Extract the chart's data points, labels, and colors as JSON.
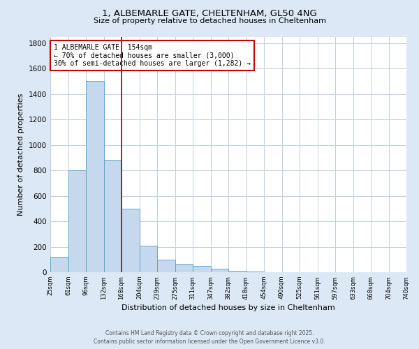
{
  "title_line1": "1, ALBEMARLE GATE, CHELTENHAM, GL50 4NG",
  "title_line2": "Size of property relative to detached houses in Cheltenham",
  "xlabel": "Distribution of detached houses by size in Cheltenham",
  "ylabel": "Number of detached properties",
  "bar_values": [
    120,
    800,
    1500,
    880,
    500,
    210,
    100,
    65,
    50,
    30,
    10,
    5,
    2,
    1,
    1,
    1,
    1,
    1,
    1,
    1
  ],
  "bin_labels": [
    "25sqm",
    "61sqm",
    "96sqm",
    "132sqm",
    "168sqm",
    "204sqm",
    "239sqm",
    "275sqm",
    "311sqm",
    "347sqm",
    "382sqm",
    "418sqm",
    "454sqm",
    "490sqm",
    "525sqm",
    "561sqm",
    "597sqm",
    "633sqm",
    "668sqm",
    "704sqm",
    "740sqm"
  ],
  "bar_color": "#c5d8ed",
  "bar_edge_color": "#5a9fc8",
  "vline_color": "#cc0000",
  "annotation_line1": "1 ALBEMARLE GATE: 154sqm",
  "annotation_line2": "← 70% of detached houses are smaller (3,000)",
  "annotation_line3": "30% of semi-detached houses are larger (1,282) →",
  "annotation_box_color": "#cc0000",
  "annotation_bg_color": "white",
  "ylim": [
    0,
    1850
  ],
  "yticks": [
    0,
    200,
    400,
    600,
    800,
    1000,
    1200,
    1400,
    1600,
    1800
  ],
  "footer_line1": "Contains HM Land Registry data © Crown copyright and database right 2025.",
  "footer_line2": "Contains public sector information licensed under the Open Government Licence v3.0.",
  "background_color": "#dce8f5",
  "plot_bg_color": "#ffffff",
  "grid_color": "#c0d0e0"
}
